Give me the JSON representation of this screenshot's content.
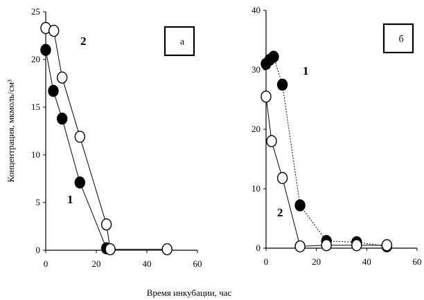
{
  "shared_xlabel": "Время инкубации, час",
  "chart_data": [
    {
      "type": "line",
      "panel": "а",
      "ylabel": "Концентрация, мкмоль/см³",
      "xlim": [
        0,
        60
      ],
      "ylim": [
        0,
        25
      ],
      "xticks": [
        0,
        20,
        40,
        60
      ],
      "yticks": [
        0,
        5,
        10,
        15,
        20,
        25
      ],
      "grid": false,
      "series": [
        {
          "name": "1",
          "marker": "filled",
          "points": [
            [
              0,
              21.0
            ],
            [
              3,
              16.7
            ],
            [
              6.5,
              13.8
            ],
            [
              13.5,
              7.1
            ],
            [
              24,
              0.2
            ]
          ]
        },
        {
          "name": "2",
          "marker": "open",
          "points": [
            [
              0,
              23.3
            ],
            [
              3.2,
              23.0
            ],
            [
              6.5,
              18.1
            ],
            [
              13.5,
              11.9
            ],
            [
              24,
              2.7
            ],
            [
              25.5,
              0.1
            ],
            [
              48,
              0.1
            ]
          ]
        }
      ]
    },
    {
      "type": "line",
      "panel": "б",
      "ylabel": "",
      "xlim": [
        0,
        60
      ],
      "ylim": [
        0,
        40
      ],
      "xticks": [
        0,
        20,
        40,
        60
      ],
      "yticks": [
        0,
        10,
        20,
        30,
        40
      ],
      "grid": false,
      "series": [
        {
          "name": "1",
          "marker": "filled",
          "points": [
            [
              0,
              31.0
            ],
            [
              1.5,
              31.7
            ],
            [
              3,
              32.2
            ],
            [
              6.5,
              27.5
            ],
            [
              13.5,
              7.2
            ],
            [
              24,
              1.2
            ],
            [
              36,
              1.0
            ],
            [
              48,
              0.3
            ]
          ]
        },
        {
          "name": "2",
          "marker": "open",
          "points": [
            [
              0,
              25.5
            ],
            [
              2.2,
              18.0
            ],
            [
              6.5,
              11.8
            ],
            [
              13.5,
              0.3
            ],
            [
              24,
              0.5
            ],
            [
              36,
              0.5
            ],
            [
              48,
              0.5
            ]
          ]
        }
      ]
    }
  ]
}
